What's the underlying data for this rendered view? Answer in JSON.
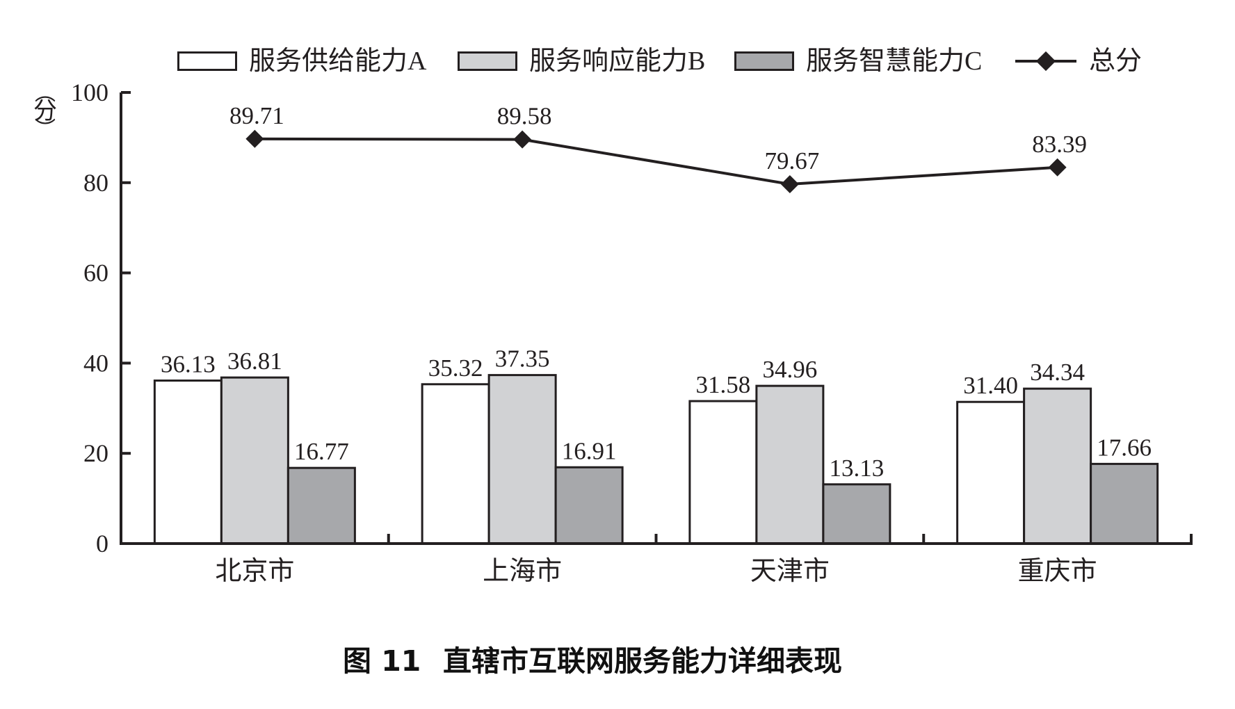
{
  "chart_data": {
    "type": "bar",
    "title": "图 11　直辖市互联网服务能力详细表现",
    "xlabel": "",
    "ylabel": "分",
    "ylim": [
      0,
      100
    ],
    "yticks": [
      0,
      20,
      40,
      60,
      80,
      100
    ],
    "grid": false,
    "legend_position": "top",
    "categories": [
      "北京市",
      "上海市",
      "天津市",
      "重庆市"
    ],
    "series": [
      {
        "name": "服务供给能力A",
        "type": "bar",
        "color": "#ffffff",
        "values": [
          36.13,
          35.32,
          31.58,
          31.4
        ]
      },
      {
        "name": "服务响应能力B",
        "type": "bar",
        "color": "#d1d2d4",
        "values": [
          36.81,
          37.35,
          34.96,
          34.34
        ]
      },
      {
        "name": "服务智慧能力C",
        "type": "bar",
        "color": "#a7a8ab",
        "values": [
          16.77,
          16.91,
          13.13,
          17.66
        ]
      },
      {
        "name": "总分",
        "type": "line",
        "marker": "diamond",
        "color": "#231f20",
        "values": [
          89.71,
          89.58,
          79.67,
          83.39
        ]
      }
    ],
    "value_labels": {
      "A": [
        "36.13",
        "35.32",
        "31.58",
        "31.40"
      ],
      "B": [
        "36.81",
        "37.35",
        "34.96",
        "34.34"
      ],
      "C": [
        "16.77",
        "16.91",
        "13.13",
        "17.66"
      ],
      "total": [
        "89.71",
        "89.58",
        "79.67",
        "83.39"
      ]
    }
  },
  "legend": {
    "a": "服务供给能力A",
    "b": "服务响应能力B",
    "c": "服务智慧能力C",
    "total": "总分"
  },
  "axis": {
    "unit": "分",
    "unit_open": "︵",
    "unit_close": "︶",
    "ytick_labels": [
      "0",
      "20",
      "40",
      "60",
      "80",
      "100"
    ]
  },
  "caption": {
    "figure_no": "图 11",
    "text": "直辖市互联网服务能力详细表现"
  },
  "colors": {
    "ink": "#231f20",
    "bar_a": "#ffffff",
    "bar_b": "#d1d2d4",
    "bar_c": "#a7a8ab"
  }
}
